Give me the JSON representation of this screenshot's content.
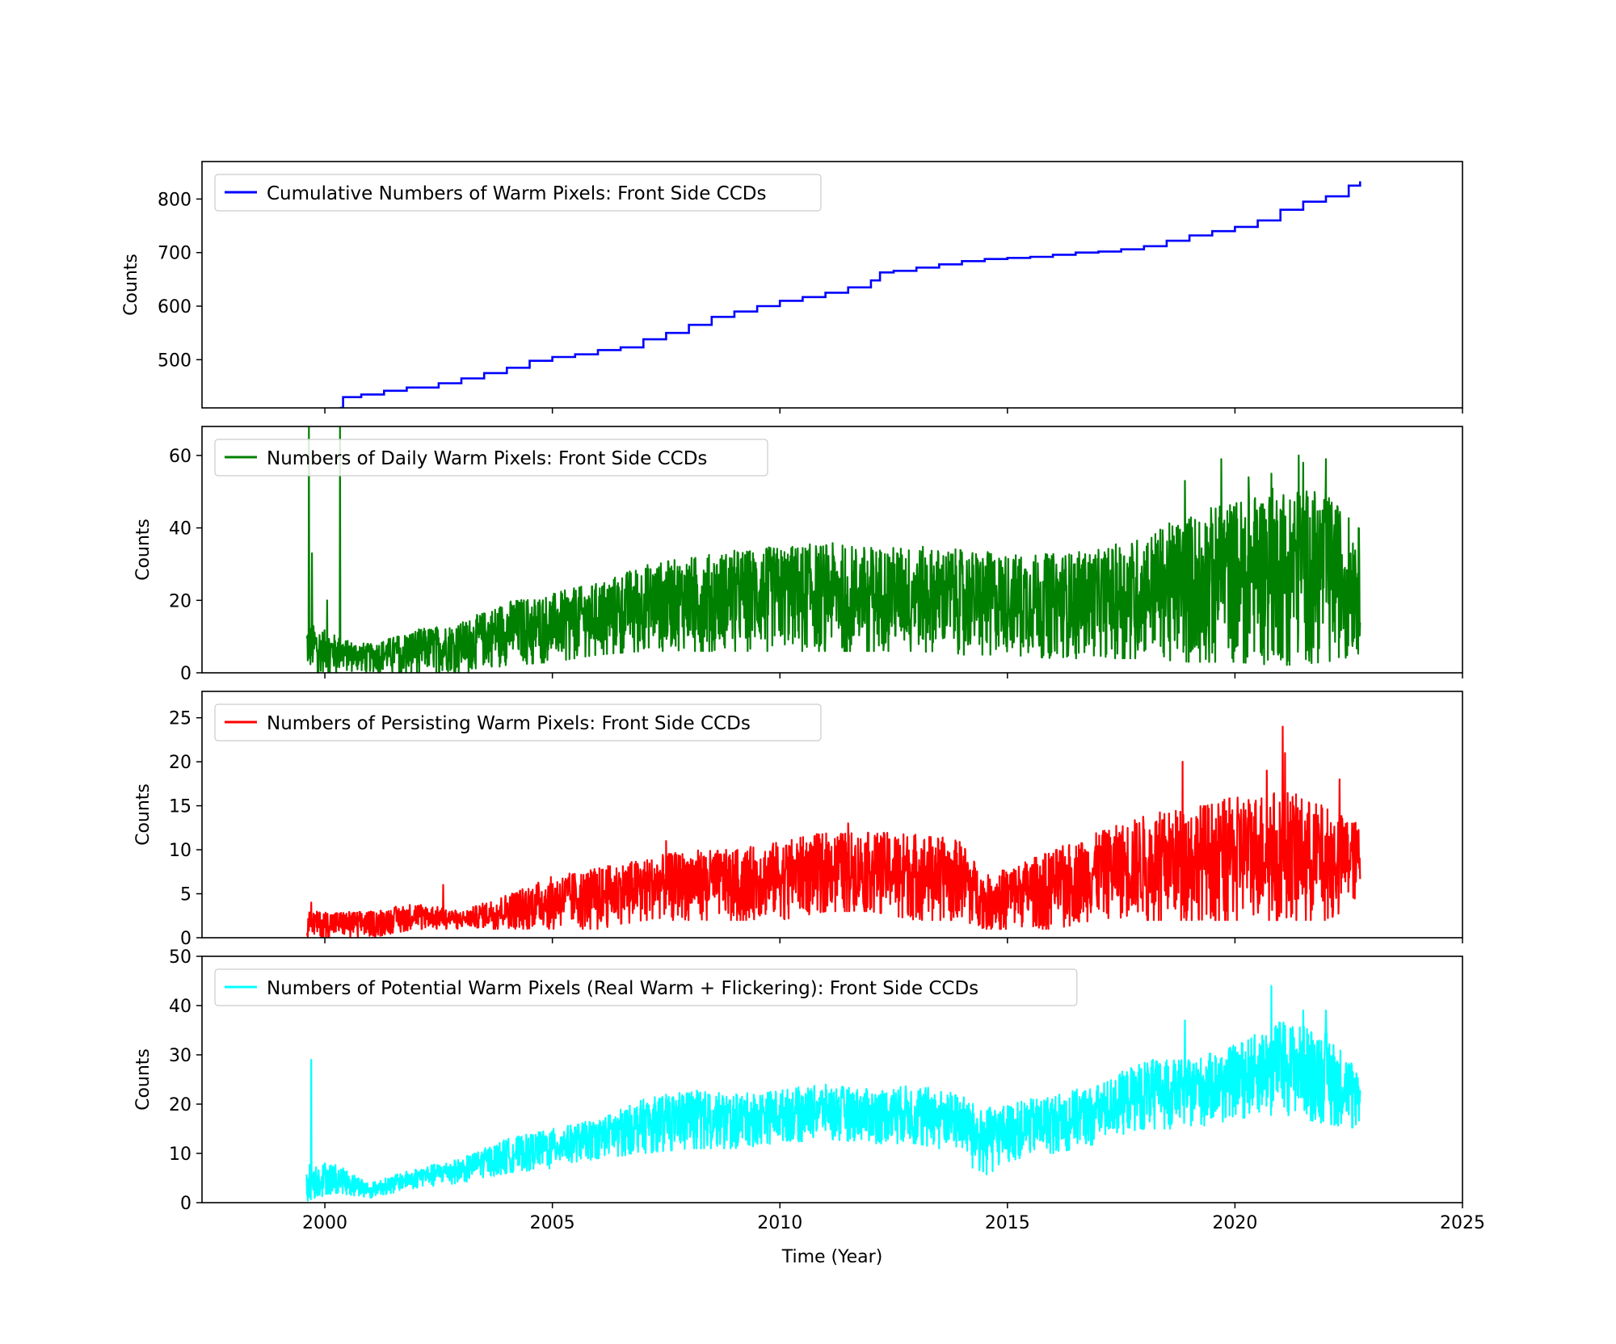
{
  "figure": {
    "xlabel": "Time (Year)",
    "x_ticks": [
      2000,
      2005,
      2010,
      2015,
      2020,
      2025
    ],
    "xlim": [
      1997.3,
      2025.0
    ]
  },
  "chart_data": [
    {
      "type": "line",
      "series": [
        {
          "name": "Cumulative Numbers of Warm Pixels: Front Side CCDs",
          "color": "#0000ff"
        }
      ],
      "ylabel": "Counts",
      "ylim": [
        410,
        870
      ],
      "y_ticks": [
        500,
        600,
        700,
        800
      ],
      "style": "step",
      "legend": "upper-left",
      "x": [
        2000.33,
        2000.4,
        2000.8,
        2001.3,
        2001.8,
        2002.5,
        2003.0,
        2003.5,
        2004.0,
        2004.5,
        2005.0,
        2005.5,
        2006.0,
        2006.5,
        2007.0,
        2007.5,
        2008.0,
        2008.5,
        2009.0,
        2009.5,
        2010.0,
        2010.5,
        2011.0,
        2011.5,
        2012.0,
        2012.2,
        2012.5,
        2013.0,
        2013.5,
        2014.0,
        2014.5,
        2015.0,
        2015.5,
        2016.0,
        2016.5,
        2017.0,
        2017.5,
        2018.0,
        2018.5,
        2019.0,
        2019.5,
        2020.0,
        2020.5,
        2021.0,
        2021.5,
        2022.0,
        2022.5,
        2022.75
      ],
      "y": [
        410,
        430,
        435,
        442,
        448,
        456,
        465,
        475,
        485,
        498,
        505,
        510,
        518,
        523,
        538,
        550,
        565,
        580,
        590,
        600,
        610,
        617,
        625,
        635,
        648,
        663,
        666,
        672,
        678,
        684,
        688,
        690,
        692,
        696,
        700,
        702,
        706,
        712,
        722,
        732,
        740,
        748,
        760,
        780,
        795,
        805,
        825,
        833
      ]
    },
    {
      "type": "line",
      "series": [
        {
          "name": "Numbers of Daily Warm Pixels: Front Side CCDs",
          "color": "#008000"
        }
      ],
      "ylabel": "Counts",
      "ylim": [
        0,
        68
      ],
      "y_ticks": [
        0,
        20,
        40,
        60
      ],
      "legend": "upper-left",
      "x_start": 1999.6,
      "x_end": 2022.75,
      "spikes": [
        [
          1999.65,
          68
        ],
        [
          1999.72,
          33
        ],
        [
          2000.05,
          20
        ],
        [
          2000.33,
          68
        ],
        [
          2018.9,
          53
        ],
        [
          2019.7,
          59
        ],
        [
          2020.3,
          54
        ],
        [
          2020.8,
          55
        ],
        [
          2021.4,
          60
        ],
        [
          2021.5,
          58
        ],
        [
          2022.0,
          59
        ]
      ],
      "envelope_x": [
        1999.6,
        2000.5,
        2001.0,
        2002.0,
        2003.0,
        2004.0,
        2005.0,
        2006.0,
        2007.0,
        2008.0,
        2009.0,
        2010.0,
        2011.0,
        2012.0,
        2013.0,
        2014.0,
        2015.0,
        2016.0,
        2017.0,
        2018.0,
        2019.0,
        2020.0,
        2021.0,
        2022.0,
        2022.75
      ],
      "envelope_hi": [
        14,
        9,
        8,
        12,
        14,
        20,
        22,
        25,
        30,
        32,
        34,
        35,
        36,
        35,
        35,
        34,
        33,
        33,
        34,
        38,
        44,
        48,
        52,
        50,
        40
      ],
      "envelope_lo": [
        0,
        0,
        0,
        0,
        0,
        2,
        3,
        5,
        6,
        6,
        6,
        6,
        6,
        6,
        6,
        5,
        5,
        4,
        4,
        4,
        3,
        3,
        2,
        3,
        5
      ]
    },
    {
      "type": "line",
      "series": [
        {
          "name": "Numbers of Persisting Warm Pixels: Front Side CCDs",
          "color": "#ff0000"
        }
      ],
      "ylabel": "Counts",
      "ylim": [
        0,
        28
      ],
      "y_ticks": [
        0,
        5,
        10,
        15,
        20,
        25
      ],
      "legend": "upper-left",
      "x_start": 1999.6,
      "x_end": 2022.75,
      "spikes": [
        [
          1999.7,
          4
        ],
        [
          2002.6,
          6
        ],
        [
          2007.5,
          11
        ],
        [
          2011.5,
          13
        ],
        [
          2018.85,
          20
        ],
        [
          2020.7,
          19
        ],
        [
          2021.05,
          24
        ],
        [
          2021.1,
          21
        ],
        [
          2022.3,
          18
        ]
      ],
      "envelope_x": [
        1999.6,
        2001.0,
        2002.0,
        2003.0,
        2004.0,
        2005.0,
        2006.0,
        2007.0,
        2008.0,
        2009.0,
        2010.0,
        2011.0,
        2012.0,
        2013.0,
        2014.0,
        2014.5,
        2015.0,
        2016.0,
        2017.0,
        2018.0,
        2019.0,
        2020.0,
        2021.0,
        2022.0,
        2022.75
      ],
      "envelope_hi": [
        3,
        3,
        4,
        3,
        5,
        7,
        8,
        9,
        10,
        10,
        11,
        12,
        12,
        12,
        11,
        7,
        8,
        10,
        12,
        14,
        15,
        16,
        17,
        15,
        13
      ],
      "envelope_lo": [
        0,
        0,
        1,
        1,
        1,
        1,
        1,
        2,
        2,
        2,
        2,
        3,
        3,
        2,
        2,
        1,
        1,
        1,
        2,
        2,
        2,
        2,
        2,
        2,
        4
      ]
    },
    {
      "type": "line",
      "series": [
        {
          "name": "Numbers of Potential Warm Pixels (Real Warm + Flickering): Front Side CCDs",
          "color": "#00ffff"
        }
      ],
      "ylabel": "Counts",
      "ylim": [
        0,
        50
      ],
      "y_ticks": [
        0,
        10,
        20,
        30,
        40,
        50
      ],
      "legend": "upper-left",
      "x_start": 1999.6,
      "x_end": 2022.75,
      "spikes": [
        [
          1999.7,
          29
        ],
        [
          2000.0,
          8
        ],
        [
          2018.9,
          37
        ],
        [
          2020.8,
          44
        ],
        [
          2021.5,
          39
        ],
        [
          2022.0,
          39
        ]
      ],
      "envelope_x": [
        1999.6,
        2000.2,
        2001.0,
        2002.0,
        2003.0,
        2004.0,
        2005.0,
        2006.0,
        2007.0,
        2008.0,
        2009.0,
        2010.0,
        2011.0,
        2012.0,
        2013.0,
        2014.0,
        2014.4,
        2015.0,
        2016.0,
        2017.0,
        2018.0,
        2019.0,
        2020.0,
        2021.0,
        2022.0,
        2022.75
      ],
      "envelope_hi": [
        8,
        8,
        4,
        7,
        9,
        13,
        15,
        17,
        21,
        23,
        22,
        23,
        24,
        23,
        24,
        22,
        19,
        20,
        22,
        24,
        29,
        29,
        32,
        37,
        35,
        27
      ],
      "envelope_lo": [
        0,
        2,
        1,
        3,
        4,
        6,
        7,
        9,
        10,
        11,
        11,
        12,
        13,
        12,
        12,
        10,
        5,
        8,
        10,
        12,
        15,
        15,
        17,
        18,
        16,
        15
      ]
    }
  ]
}
